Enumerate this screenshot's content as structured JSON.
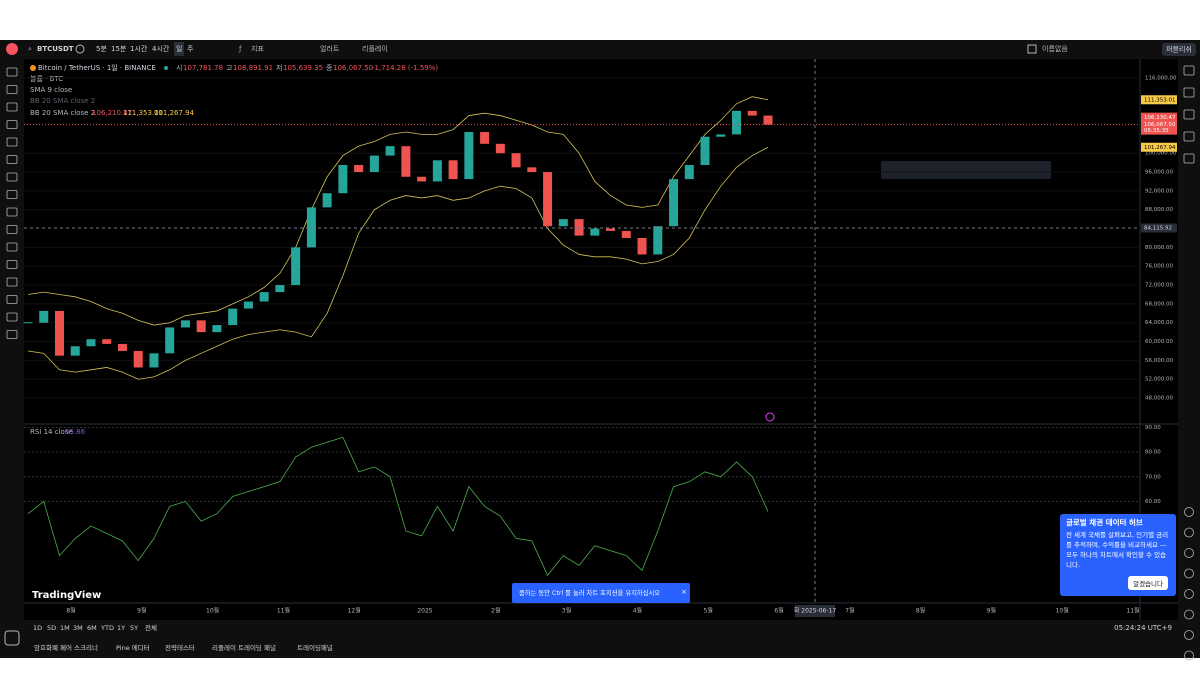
{
  "toolbar": {
    "symbol": "BTCUSDT",
    "intervals": [
      "5분",
      "15분",
      "1시간",
      "4시간",
      "일",
      "주"
    ],
    "indicators": "지표",
    "alert": "얼러트",
    "replay": "리플레이",
    "layout_name": "이름없음",
    "publish": "퍼블리쉬"
  },
  "legend": {
    "title": "Bitcoin / TetherUS · 1일 · BINANCE",
    "ohlc": [
      {
        "label": "시",
        "value": "107,781.78"
      },
      {
        "label": "고",
        "value": "108,891.91"
      },
      {
        "label": "저",
        "value": "105,639.35"
      },
      {
        "label": "종",
        "value": "106,067.50"
      }
    ],
    "change": "-1,714.28 (-1.59%)",
    "volume": "볼륨 · BTC",
    "sma": "SMA 9 close",
    "bb_hidden": "BB 20 SMA close 2",
    "bb": {
      "name": "BB 20 SMA close 2",
      "values": [
        "106,210.47",
        "111,353.01",
        "101,267.94"
      ]
    }
  },
  "chart_data": {
    "type": "candlestick",
    "closes": [
      64000,
      66500,
      57000,
      59000,
      60500,
      59500,
      58000,
      54500,
      57500,
      63000,
      64500,
      62000,
      63500,
      67000,
      68500,
      70500,
      72000,
      80000,
      88500,
      91500,
      97500,
      96000,
      99500,
      101500,
      95000,
      94000,
      98500,
      94500,
      104500,
      102000,
      100000,
      97000,
      96000,
      84500,
      86000,
      82500,
      84000,
      83500,
      82000,
      78500,
      84500,
      94500,
      97500,
      103500,
      104000,
      109000,
      108000,
      106067.5
    ],
    "bb_upper": [
      70000,
      70500,
      70000,
      69500,
      68500,
      67000,
      66000,
      64500,
      63500,
      64000,
      65500,
      66000,
      66500,
      68000,
      69500,
      71500,
      74500,
      80000,
      88000,
      95000,
      99500,
      101500,
      102500,
      104000,
      104500,
      104000,
      104000,
      105000,
      108000,
      108500,
      108000,
      107000,
      106000,
      104500,
      104000,
      100000,
      94000,
      91000,
      89000,
      88500,
      89000,
      95000,
      99500,
      104000,
      107000,
      110500,
      112000,
      111353.01
    ],
    "bb_lower": [
      58000,
      57500,
      54000,
      53500,
      54000,
      54500,
      53500,
      52000,
      52500,
      54000,
      56000,
      57500,
      59000,
      60500,
      61500,
      62000,
      62500,
      62000,
      61000,
      66000,
      74000,
      83000,
      88000,
      90000,
      91000,
      90500,
      91000,
      90000,
      90500,
      92000,
      93000,
      92500,
      90500,
      84000,
      80500,
      78500,
      78000,
      78000,
      77500,
      76500,
      77000,
      78500,
      82000,
      88000,
      93000,
      97000,
      99500,
      101267.94
    ],
    "ylim": [
      42700,
      119800
    ],
    "yticks": [
      {
        "value": 116000,
        "label": "116,000.00"
      },
      {
        "value": 100000,
        "label": "100,000.00"
      },
      {
        "value": 96000,
        "label": "96,000.00"
      },
      {
        "value": 92000,
        "label": "92,000.00"
      },
      {
        "value": 88000,
        "label": "88,000.00"
      },
      {
        "value": 80000,
        "label": "80,000.00"
      },
      {
        "value": 76000,
        "label": "76,000.00"
      },
      {
        "value": 72000,
        "label": "72,000.00"
      },
      {
        "value": 68000,
        "label": "68,000.00"
      },
      {
        "value": 64000,
        "label": "64,000.00"
      },
      {
        "value": 60000,
        "label": "60,000.00"
      },
      {
        "value": 56000,
        "label": "56,000.00"
      },
      {
        "value": 52000,
        "label": "52,000.00"
      },
      {
        "value": 48000,
        "label": "48,000.00"
      }
    ],
    "price_labels": {
      "upper": {
        "value": 111353.01,
        "label": "111,353.01"
      },
      "last_open": "106,130.47",
      "last": {
        "value": 106067.5,
        "label": "106,067.50"
      },
      "countdown": "05:35:35",
      "lower": {
        "value": 101267.94,
        "label": "101,267.94"
      },
      "crosshair": {
        "value": 84115.92,
        "label": "84,115.92"
      }
    },
    "x_labels": [
      "8월",
      "9월",
      "10월",
      "11월",
      "12월",
      "2025",
      "2월",
      "3월",
      "4월",
      "5월",
      "6월",
      "7월",
      "8월",
      "9월",
      "10월",
      "11월"
    ],
    "crosshair_date": "화 2025-06-17"
  },
  "rsi": {
    "type": "line",
    "title": "RSI 14 close",
    "value": "55.86",
    "values": [
      55,
      60,
      38,
      45,
      50,
      47,
      44,
      36,
      45,
      58,
      60,
      52,
      55,
      62,
      64,
      66,
      68,
      78,
      82,
      84,
      86,
      72,
      74,
      70,
      48,
      46,
      58,
      48,
      66,
      58,
      54,
      45,
      44,
      30,
      38,
      34,
      42,
      40,
      38,
      32,
      48,
      66,
      68,
      72,
      70,
      76,
      70,
      55.86
    ],
    "ylim": [
      20,
      91
    ],
    "yticks": [
      {
        "value": 90,
        "label": "90.00"
      },
      {
        "value": 80,
        "label": "80.00"
      },
      {
        "value": 70,
        "label": "70.00"
      },
      {
        "value": 60,
        "label": "60.00"
      }
    ]
  },
  "logo": "TradingView",
  "ranges": [
    "1D",
    "5D",
    "1M",
    "3M",
    "6M",
    "YTD",
    "1Y",
    "5Y",
    "전체"
  ],
  "clock": "05:24:24 UTC+9",
  "tabs": [
    "암호화폐 페어 스크리너",
    "Pine 에디터",
    "전략테스터",
    "리플레이 트레이딩 패널",
    "트레이딩패널"
  ],
  "toast": "줌하는 동안 Ctrl 를 눌러 차트 포지션을 유지하십시오",
  "popup": {
    "title": "글로벌 채권 데이터 허브",
    "body": "전 세계 국채를 살펴보고, 인기별 금리를 추적하며, 수익률을 비교하세요 — 모두 하나의 차트에서 확인할 수 있습니다.",
    "button": "알겠습니다"
  }
}
